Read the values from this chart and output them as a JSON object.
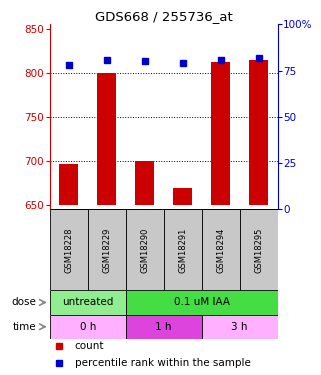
{
  "title": "GDS668 / 255736_at",
  "samples": [
    "GSM18228",
    "GSM18229",
    "GSM18290",
    "GSM18291",
    "GSM18294",
    "GSM18295"
  ],
  "red_values": [
    697,
    800,
    700,
    669,
    812,
    814
  ],
  "blue_values": [
    78,
    81,
    80,
    79,
    81,
    82
  ],
  "ylim_left": [
    645,
    855
  ],
  "ylim_right": [
    0,
    100
  ],
  "yticks_left": [
    650,
    700,
    750,
    800,
    850
  ],
  "yticks_right": [
    0,
    25,
    50,
    75,
    100
  ],
  "right_tick_labels": [
    "0",
    "25",
    "50",
    "75",
    "100%"
  ],
  "bar_bottom": 650,
  "blue_marker_size": 4,
  "dose_label_text": "dose",
  "time_label_text": "time",
  "legend_red": "count",
  "legend_blue": "percentile rank within the sample",
  "red_color": "#CC0000",
  "blue_color": "#0000CC",
  "grid_color": "black",
  "bar_width": 0.5,
  "sample_col_color": "#C8C8C8",
  "dose_green_color": "#90EE90",
  "dose_pink_color": "#44DD44",
  "time_light_pink": "#FFB0FF",
  "time_bright_pink": "#DD44DD",
  "grid_lines": [
    700,
    750,
    800
  ]
}
